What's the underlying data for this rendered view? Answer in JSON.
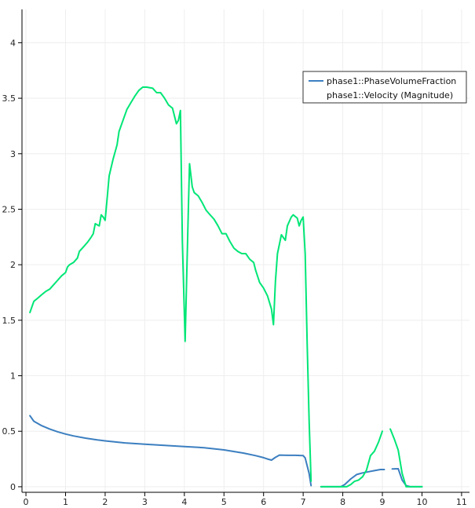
{
  "chart_data": {
    "type": "line",
    "xlim": [
      -0.1,
      11.2
    ],
    "ylim": [
      -0.05,
      4.3
    ],
    "x_ticks": [
      0,
      1,
      2,
      3,
      4,
      5,
      6,
      7,
      8,
      9,
      10,
      11
    ],
    "y_ticks": [
      0,
      0.5,
      1,
      1.5,
      2,
      2.5,
      3,
      3.5,
      4
    ],
    "x_tick_labels": [
      "0",
      "1",
      "2",
      "3",
      "4",
      "5",
      "6",
      "7",
      "8",
      "9",
      "10",
      "11"
    ],
    "y_tick_labels": [
      "0",
      "0.5",
      "1",
      "1.5",
      "2",
      "2.5",
      "3",
      "3.5",
      "4"
    ],
    "grid": true,
    "legend_position": "top-right",
    "series": [
      {
        "name": "phase1::PhaseVolumeFraction",
        "color": "#3c7fc0",
        "segments": [
          [
            [
              0.1,
              0.64
            ],
            [
              0.2,
              0.59
            ],
            [
              0.4,
              0.55
            ],
            [
              0.6,
              0.52
            ],
            [
              0.8,
              0.495
            ],
            [
              1.0,
              0.475
            ],
            [
              1.2,
              0.458
            ],
            [
              1.5,
              0.438
            ],
            [
              1.8,
              0.422
            ],
            [
              2.0,
              0.413
            ],
            [
              2.5,
              0.395
            ],
            [
              3.0,
              0.383
            ],
            [
              3.5,
              0.372
            ],
            [
              4.0,
              0.362
            ],
            [
              4.5,
              0.352
            ],
            [
              5.0,
              0.332
            ],
            [
              5.5,
              0.303
            ],
            [
              5.8,
              0.28
            ],
            [
              6.0,
              0.262
            ],
            [
              6.1,
              0.25
            ],
            [
              6.2,
              0.24
            ],
            [
              6.3,
              0.265
            ],
            [
              6.4,
              0.285
            ],
            [
              6.6,
              0.283
            ],
            [
              6.8,
              0.283
            ],
            [
              7.0,
              0.28
            ],
            [
              7.05,
              0.26
            ],
            [
              7.15,
              0.12
            ],
            [
              7.2,
              0.01
            ]
          ],
          [
            [
              7.45,
              0.0
            ],
            [
              7.6,
              0.0
            ],
            [
              7.8,
              0.0
            ],
            [
              7.95,
              0.0
            ],
            [
              8.05,
              0.02
            ],
            [
              8.2,
              0.07
            ],
            [
              8.35,
              0.11
            ],
            [
              8.5,
              0.125
            ],
            [
              8.65,
              0.135
            ],
            [
              8.8,
              0.145
            ],
            [
              8.95,
              0.155
            ],
            [
              9.05,
              0.155
            ]
          ],
          [
            [
              9.25,
              0.16
            ],
            [
              9.4,
              0.162
            ],
            [
              9.5,
              0.06
            ],
            [
              9.6,
              0.01
            ],
            [
              9.7,
              0.0
            ],
            [
              10.0,
              0.0
            ]
          ]
        ]
      },
      {
        "name": "phase1::Velocity (Magnitude)",
        "color": "#00e676",
        "segments": [
          [
            [
              0.1,
              1.57
            ],
            [
              0.2,
              1.67
            ],
            [
              0.3,
              1.7
            ],
            [
              0.4,
              1.73
            ],
            [
              0.5,
              1.76
            ],
            [
              0.6,
              1.78
            ],
            [
              0.7,
              1.82
            ],
            [
              0.8,
              1.86
            ],
            [
              0.9,
              1.9
            ],
            [
              1.0,
              1.93
            ],
            [
              1.05,
              1.98
            ],
            [
              1.1,
              2.0
            ],
            [
              1.2,
              2.02
            ],
            [
              1.3,
              2.06
            ],
            [
              1.35,
              2.12
            ],
            [
              1.45,
              2.16
            ],
            [
              1.55,
              2.2
            ],
            [
              1.65,
              2.25
            ],
            [
              1.7,
              2.28
            ],
            [
              1.75,
              2.37
            ],
            [
              1.85,
              2.35
            ],
            [
              1.9,
              2.45
            ],
            [
              1.95,
              2.43
            ],
            [
              2.0,
              2.4
            ],
            [
              2.05,
              2.6
            ],
            [
              2.1,
              2.8
            ],
            [
              2.2,
              2.95
            ],
            [
              2.3,
              3.08
            ],
            [
              2.35,
              3.2
            ],
            [
              2.45,
              3.3
            ],
            [
              2.55,
              3.4
            ],
            [
              2.65,
              3.46
            ],
            [
              2.75,
              3.52
            ],
            [
              2.85,
              3.57
            ],
            [
              2.95,
              3.6
            ],
            [
              3.05,
              3.6
            ],
            [
              3.2,
              3.59
            ],
            [
              3.3,
              3.55
            ],
            [
              3.4,
              3.55
            ],
            [
              3.5,
              3.5
            ],
            [
              3.6,
              3.44
            ],
            [
              3.7,
              3.41
            ],
            [
              3.8,
              3.27
            ],
            [
              3.85,
              3.3
            ],
            [
              3.9,
              3.39
            ],
            [
              3.95,
              2.2
            ],
            [
              4.02,
              1.31
            ],
            [
              4.1,
              2.5
            ],
            [
              4.13,
              2.91
            ],
            [
              4.2,
              2.7
            ],
            [
              4.25,
              2.65
            ],
            [
              4.35,
              2.62
            ],
            [
              4.45,
              2.56
            ],
            [
              4.55,
              2.49
            ],
            [
              4.65,
              2.45
            ],
            [
              4.75,
              2.41
            ],
            [
              4.85,
              2.35
            ],
            [
              4.95,
              2.28
            ],
            [
              5.05,
              2.28
            ],
            [
              5.15,
              2.21
            ],
            [
              5.25,
              2.15
            ],
            [
              5.35,
              2.12
            ],
            [
              5.45,
              2.1
            ],
            [
              5.55,
              2.1
            ],
            [
              5.65,
              2.05
            ],
            [
              5.75,
              2.02
            ],
            [
              5.8,
              1.95
            ],
            [
              5.9,
              1.84
            ],
            [
              6.0,
              1.79
            ],
            [
              6.1,
              1.72
            ],
            [
              6.2,
              1.6
            ],
            [
              6.25,
              1.46
            ],
            [
              6.3,
              1.85
            ],
            [
              6.35,
              2.1
            ],
            [
              6.45,
              2.27
            ],
            [
              6.55,
              2.22
            ],
            [
              6.6,
              2.35
            ],
            [
              6.7,
              2.43
            ],
            [
              6.75,
              2.45
            ],
            [
              6.85,
              2.42
            ],
            [
              6.9,
              2.35
            ],
            [
              6.95,
              2.4
            ],
            [
              7.0,
              2.43
            ],
            [
              7.05,
              2.1
            ],
            [
              7.1,
              1.3
            ],
            [
              7.15,
              0.6
            ],
            [
              7.2,
              0.05
            ]
          ],
          [
            [
              7.45,
              0.0
            ],
            [
              7.6,
              0.0
            ],
            [
              7.8,
              0.0
            ],
            [
              8.0,
              0.0
            ],
            [
              8.1,
              0.0
            ],
            [
              8.2,
              0.02
            ],
            [
              8.3,
              0.05
            ],
            [
              8.4,
              0.06
            ],
            [
              8.5,
              0.09
            ],
            [
              8.6,
              0.15
            ],
            [
              8.7,
              0.28
            ],
            [
              8.8,
              0.32
            ],
            [
              8.9,
              0.4
            ],
            [
              9.0,
              0.5
            ]
          ],
          [
            [
              9.2,
              0.52
            ],
            [
              9.3,
              0.43
            ],
            [
              9.4,
              0.33
            ],
            [
              9.5,
              0.12
            ],
            [
              9.6,
              0.0
            ],
            [
              9.8,
              0.0
            ],
            [
              10.0,
              0.0
            ]
          ]
        ]
      }
    ]
  }
}
